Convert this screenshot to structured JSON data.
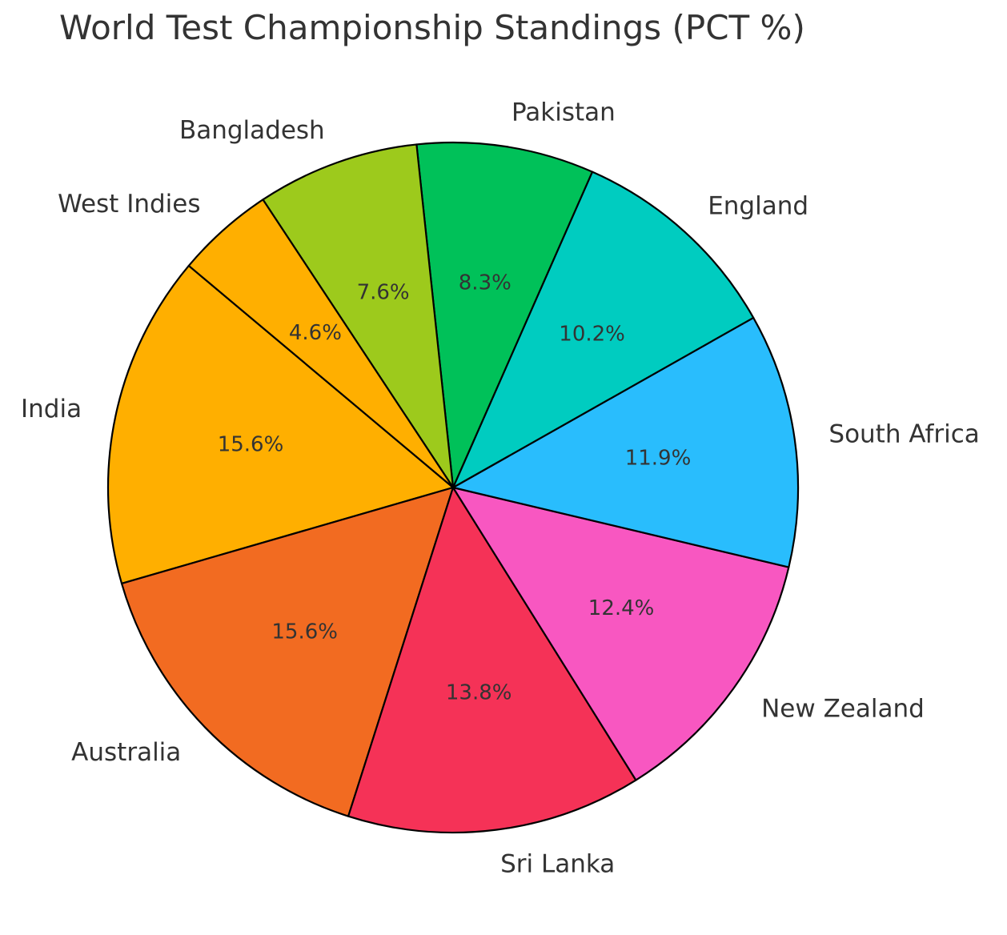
{
  "chart_data": {
    "type": "pie",
    "title": "World Test Championship Standings (PCT %)",
    "categories": [
      "India",
      "Australia",
      "Sri Lanka",
      "New Zealand",
      "South Africa",
      "England",
      "Pakistan",
      "Bangladesh",
      "West Indies"
    ],
    "values": [
      15.6,
      15.6,
      13.8,
      12.4,
      11.9,
      10.2,
      8.3,
      7.6,
      4.6
    ],
    "value_labels": [
      "15.6%",
      "15.6%",
      "13.8%",
      "12.4%",
      "11.9%",
      "10.2%",
      "8.3%",
      "7.6%",
      "4.6%"
    ],
    "colors": [
      "#FFAF00",
      "#F26B21",
      "#F53257",
      "#F857C1",
      "#29BDFD",
      "#00CCC0",
      "#00C159",
      "#9DCA1C",
      "#FFAF00"
    ],
    "start_angle_deg": 140,
    "direction": "counterclockwise",
    "edge_color": "#000000"
  }
}
